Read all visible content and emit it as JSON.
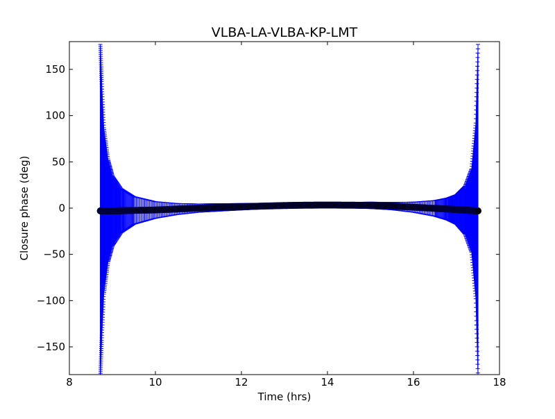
{
  "chart_data": {
    "type": "scatter",
    "title": "VLBA-LA-VLBA-KP-LMT",
    "xlabel": "Time (hrs)",
    "ylabel": "Closure phase (deg)",
    "xlim": [
      8,
      18
    ],
    "ylim": [
      -180,
      180
    ],
    "xticks": [
      8,
      10,
      12,
      14,
      16,
      18
    ],
    "xtick_labels": [
      "8",
      "10",
      "12",
      "14",
      "16",
      "18"
    ],
    "yticks": [
      -150,
      -100,
      -50,
      0,
      50,
      100,
      150
    ],
    "ytick_labels": [
      "−150",
      "−100",
      "−50",
      "0",
      "50",
      "100",
      "150"
    ],
    "grid": false,
    "legend": "none",
    "colors": {
      "points": "#000000",
      "point_edge": "#00003c",
      "errorbars": "#0000ff"
    },
    "series": [
      {
        "marker": "circle",
        "errorbars": true,
        "x": [
          8.72,
          8.75,
          8.8,
          8.9,
          9.0,
          9.2,
          9.5,
          10.0,
          10.5,
          11.0,
          11.5,
          12.0,
          12.5,
          13.0,
          13.5,
          14.0,
          14.5,
          15.0,
          15.5,
          16.0,
          16.5,
          16.8,
          17.0,
          17.2,
          17.35,
          17.45,
          17.5
        ],
        "y": [
          -3,
          -3,
          -3,
          -3,
          -3,
          -2.8,
          -2.5,
          -2,
          -1,
          0,
          0.8,
          1.5,
          2.2,
          2.8,
          3.2,
          3.3,
          3.2,
          3,
          2.2,
          1,
          -0.3,
          -1,
          -1.5,
          -2.2,
          -2.6,
          -3,
          -3
        ],
        "yerr": [
          180,
          140,
          90,
          55,
          38,
          24,
          15,
          9,
          6,
          4.5,
          4,
          3.5,
          3,
          3,
          3,
          3,
          3,
          3.5,
          4,
          5.5,
          8.5,
          12,
          16,
          26,
          45,
          95,
          180
        ]
      }
    ]
  }
}
